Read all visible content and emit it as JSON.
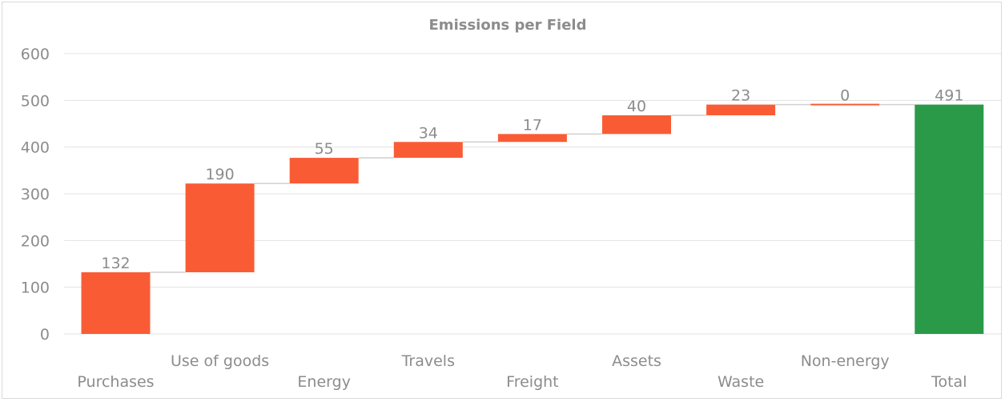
{
  "chart_data": {
    "type": "bar",
    "subtype": "waterfall",
    "title": "Emissions per Field",
    "xlabel": "",
    "ylabel": "",
    "ylim": [
      0,
      600
    ],
    "yticks": [
      0,
      100,
      200,
      300,
      400,
      500,
      600
    ],
    "grid": true,
    "legend": "none",
    "categories": [
      "Purchases",
      "Use of goods",
      "Energy",
      "Travels",
      "Freight",
      "Assets",
      "Waste",
      "Non-energy",
      "Total"
    ],
    "values": [
      132,
      190,
      55,
      34,
      17,
      40,
      23,
      0,
      491
    ],
    "data_labels": [
      "132",
      "190",
      "55",
      "34",
      "17",
      "40",
      "23",
      "0",
      "491"
    ],
    "is_total": [
      false,
      false,
      false,
      false,
      false,
      false,
      false,
      false,
      true
    ],
    "colors": {
      "increase": "#f95c35",
      "total": "#2a9a48"
    }
  }
}
